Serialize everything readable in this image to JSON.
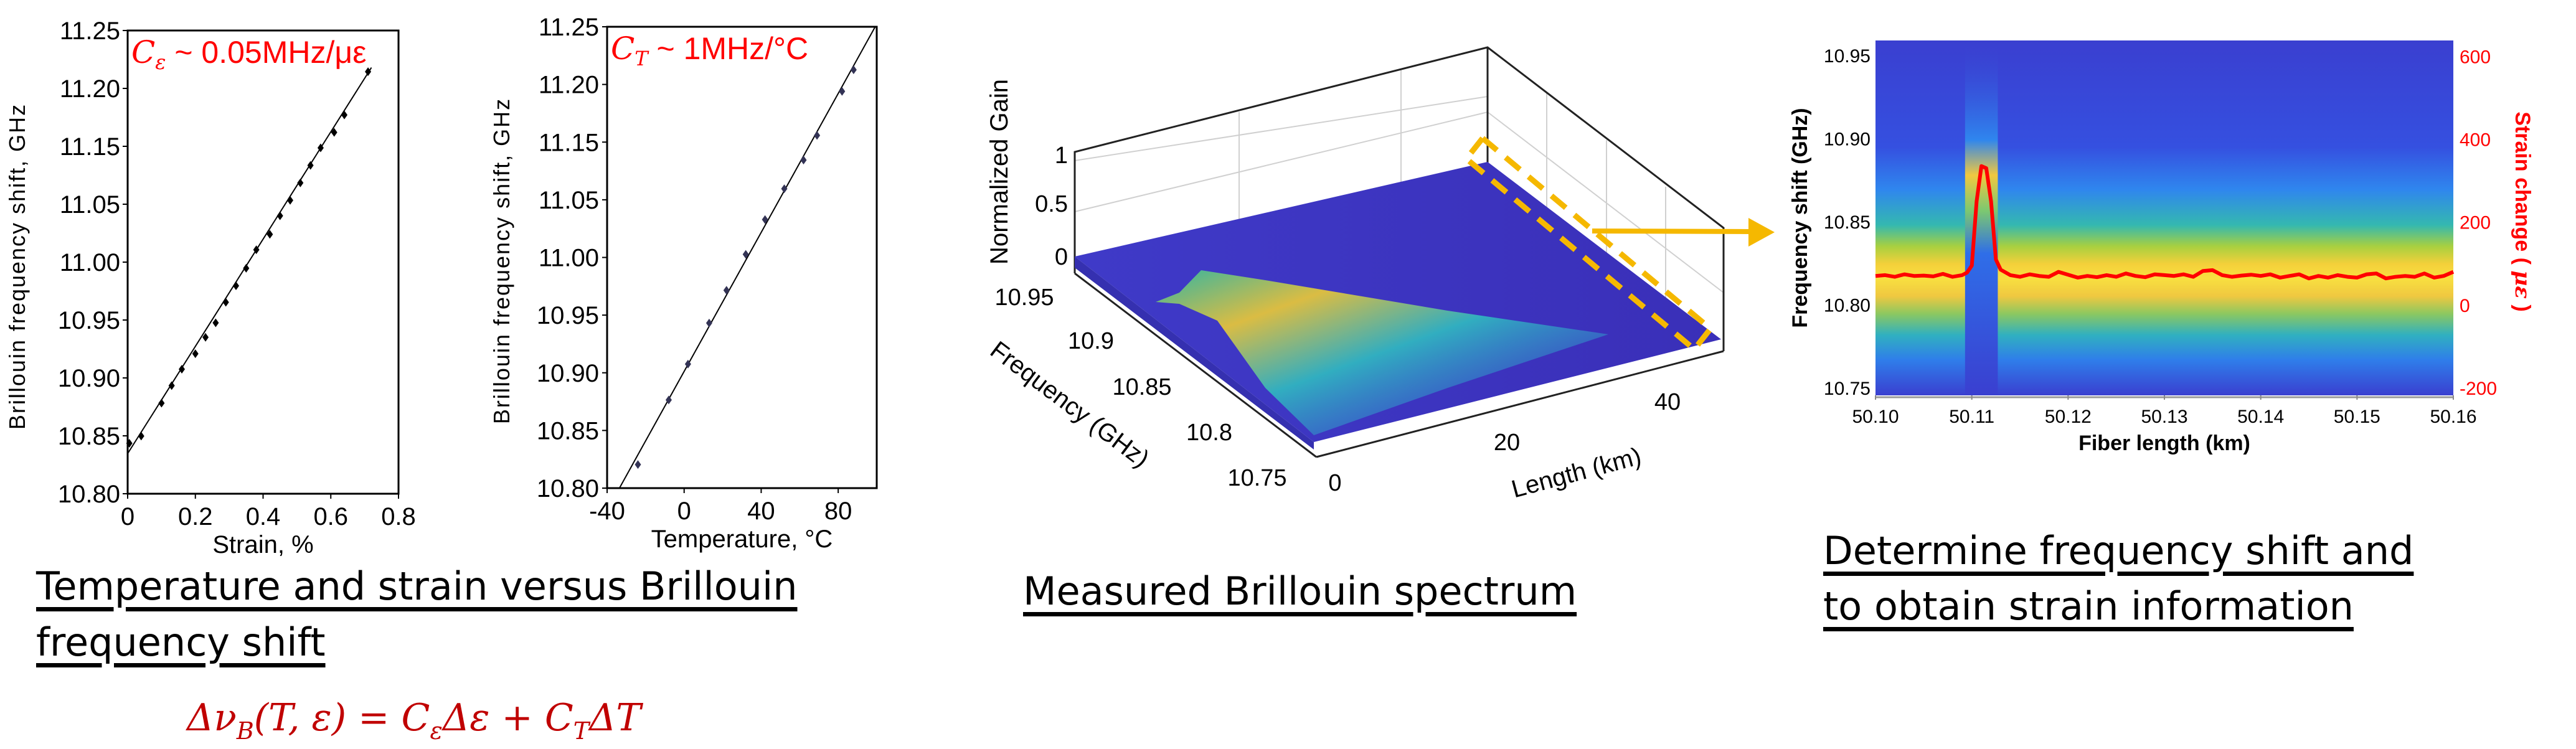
{
  "captions": {
    "left_line1": "Temperature and strain versus Brillouin",
    "left_line2": "frequency shift",
    "middle": "Measured Brillouin spectrum",
    "right_line1": "Determine frequency shift and",
    "right_line2": "to obtain strain information"
  },
  "formula": {
    "parts": [
      "Δν",
      "B",
      "(T, ε) = ",
      "C",
      "ε",
      "Δε + ",
      "C",
      "T",
      "ΔT"
    ]
  },
  "colors": {
    "annotation_red": "#ff0000",
    "formula_red": "#c00000",
    "highlight_yellow": "#f5b800",
    "surface_blue": "#3a30c0"
  },
  "chart_data": [
    {
      "type": "scatter",
      "xlabel": "Strain, %",
      "ylabel": "Brillouin frequency shift, GHz",
      "xlim": [
        0,
        0.8
      ],
      "ylim": [
        10.8,
        11.25
      ],
      "xticks": [
        "0",
        "0.2",
        "0.4",
        "0.6",
        "0.8"
      ],
      "yticks": [
        "11.25",
        "11.20",
        "11.15",
        "11.05",
        "11.00",
        "10.95",
        "10.90",
        "10.85",
        "10.80"
      ],
      "annotation": {
        "symbol": "C",
        "sub": "ε",
        "rest": " ~ 0.05MHz/με"
      },
      "points": {
        "x": [
          0.005,
          0.04,
          0.1,
          0.13,
          0.16,
          0.2,
          0.23,
          0.26,
          0.29,
          0.32,
          0.35,
          0.38,
          0.42,
          0.45,
          0.48,
          0.51,
          0.54,
          0.57,
          0.61,
          0.64,
          0.71
        ],
        "y": [
          10.849,
          10.856,
          10.888,
          10.905,
          10.921,
          10.936,
          10.952,
          10.966,
          10.986,
          11.002,
          11.019,
          11.037,
          11.052,
          11.07,
          11.085,
          11.102,
          11.119,
          11.136,
          11.151,
          11.168,
          11.21
        ]
      },
      "fit_line": {
        "x": [
          0,
          0.72
        ],
        "y": [
          10.839,
          11.214
        ]
      }
    },
    {
      "type": "scatter",
      "xlabel": "Temperature, °C",
      "ylabel": "Brillouin frequency shift, GHz",
      "xlim": [
        -40,
        100
      ],
      "ylim": [
        10.8,
        11.25
      ],
      "xticks": [
        "-40",
        "0",
        "40",
        "80"
      ],
      "xtick_values": [
        -40,
        0,
        40,
        80
      ],
      "yticks": [
        "11.25",
        "11.20",
        "11.15",
        "11.05",
        "11.00",
        "10.95",
        "10.90",
        "10.85",
        "10.80"
      ],
      "annotation": {
        "symbol": "C",
        "sub": "T",
        "rest": " ~ 1MHz/°C"
      },
      "points": {
        "x": [
          -24,
          -8,
          2,
          13,
          22,
          32,
          42,
          52,
          62,
          69,
          82,
          88
        ],
        "y": [
          10.823,
          10.886,
          10.921,
          10.961,
          10.993,
          11.028,
          11.062,
          11.092,
          11.12,
          11.144,
          11.187,
          11.208
        ]
      },
      "fit_line": {
        "x": [
          -33.6,
          99.2
        ],
        "y": [
          10.8,
          11.25
        ]
      }
    },
    {
      "type": "surface",
      "zlabel": "Normalized Gain",
      "ylabel": "Frequency (GHz)",
      "xlabel": "Length (km)",
      "zticks": [
        "1",
        "0.5",
        "0"
      ],
      "yticks": [
        "10.95",
        "10.9",
        "10.85",
        "10.8",
        "10.75"
      ],
      "xticks": [
        "0",
        "20",
        "40"
      ]
    },
    {
      "type": "heatmap",
      "xlabel": "Fiber length (km)",
      "ylabel": "Frequency shift (GHz)",
      "y2label": {
        "before": "Strain change ( ",
        "unit": "με",
        "after": " )"
      },
      "xlim": [
        50.1,
        50.16
      ],
      "ylim": [
        10.7456,
        10.959
      ],
      "y2lim": [
        -218,
        638
      ],
      "xticks": [
        "50.10",
        "50.11",
        "50.12",
        "50.13",
        "50.14",
        "50.15",
        "50.16"
      ],
      "xtick_values": [
        50.1,
        50.11,
        50.12,
        50.13,
        50.14,
        50.15,
        50.16
      ],
      "yticks": [
        "10.95",
        "10.90",
        "10.85",
        "10.80",
        "10.75"
      ],
      "ytick_values": [
        10.95,
        10.9,
        10.85,
        10.8,
        10.75
      ],
      "y2ticks": [
        "600",
        "400",
        "200",
        "0",
        "-200"
      ],
      "y2tick_values": [
        600,
        400,
        200,
        0,
        -200
      ],
      "band_center_ghz": 10.822,
      "strain_series": {
        "name": "Strain change",
        "x": [
          50.1,
          50.101,
          50.102,
          50.103,
          50.104,
          50.105,
          50.106,
          50.107,
          50.108,
          50.109,
          50.1095,
          50.11,
          50.1105,
          50.111,
          50.1115,
          50.112,
          50.1125,
          50.113,
          50.114,
          50.115,
          50.116,
          50.117,
          50.118,
          50.119,
          50.12,
          50.121,
          50.122,
          50.123,
          50.124,
          50.125,
          50.126,
          50.127,
          50.128,
          50.129,
          50.13,
          50.131,
          50.132,
          50.133,
          50.134,
          50.135,
          50.136,
          50.137,
          50.138,
          50.139,
          50.14,
          50.141,
          50.142,
          50.143,
          50.144,
          50.145,
          50.146,
          50.147,
          50.148,
          50.149,
          50.15,
          50.151,
          50.152,
          50.153,
          50.154,
          50.155,
          50.156,
          50.157,
          50.158,
          50.159,
          50.16
        ],
        "y": [
          70,
          72,
          68,
          74,
          70,
          71,
          69,
          75,
          68,
          72,
          78,
          95,
          250,
          335,
          330,
          250,
          110,
          85,
          72,
          68,
          74,
          70,
          68,
          80,
          73,
          66,
          70,
          67,
          72,
          68,
          76,
          70,
          67,
          74,
          72,
          70,
          74,
          68,
          82,
          84,
          72,
          68,
          71,
          73,
          70,
          74,
          66,
          70,
          74,
          64,
          70,
          66,
          72,
          68,
          66,
          74,
          76,
          64,
          68,
          70,
          68,
          76,
          66,
          70,
          80
        ]
      }
    }
  ]
}
